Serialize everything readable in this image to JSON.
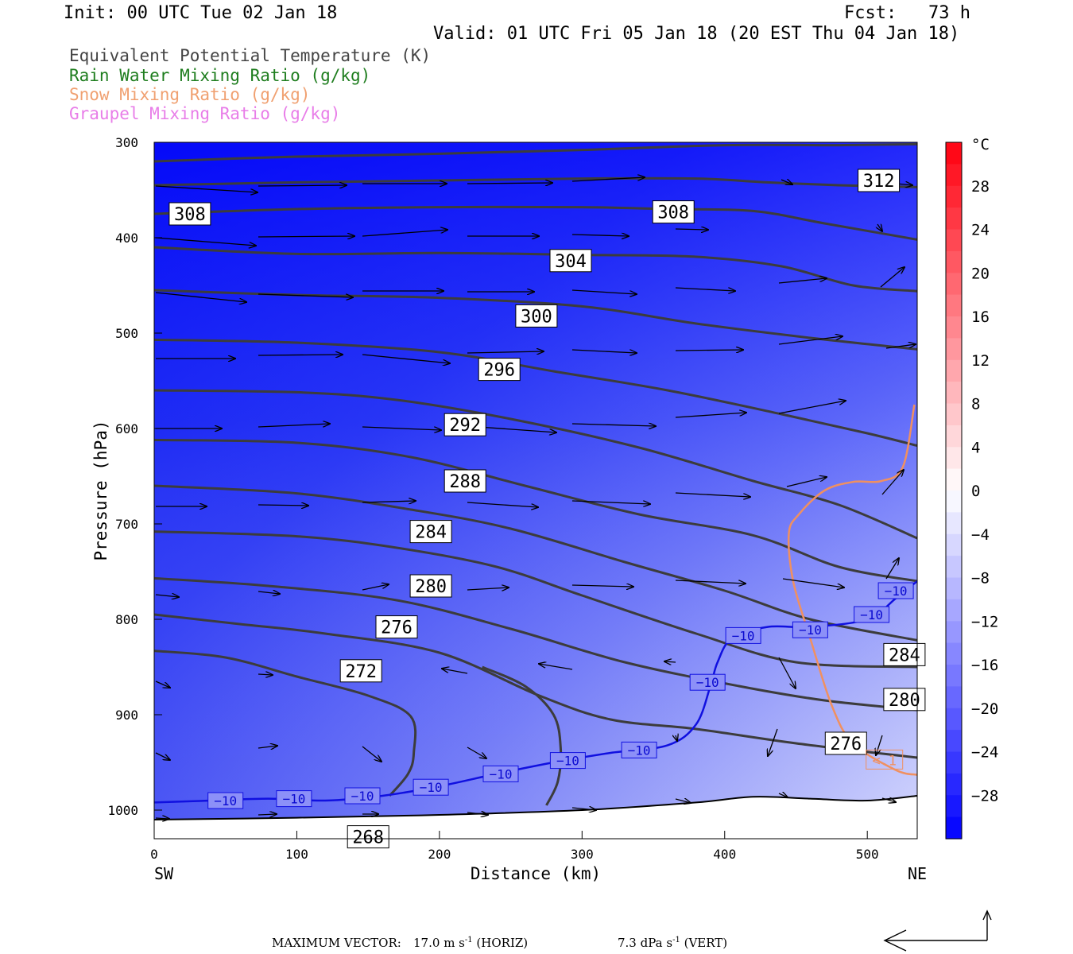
{
  "header": {
    "init": "Init: 00 UTC Tue 02 Jan 18",
    "fcst": "Fcst:   73 h",
    "valid": "Valid: 01 UTC Fri 05 Jan 18 (20 EST Thu 04 Jan 18)"
  },
  "legend": {
    "items": [
      {
        "label": "Equivalent Potential Temperature (K)",
        "color": "#444444"
      },
      {
        "label": "Rain Water Mixing Ratio (g/kg)",
        "color": "#1e7d1e"
      },
      {
        "label": "Snow Mixing Ratio (g/kg)",
        "color": "#f0a070"
      },
      {
        "label": "Graupel Mixing Ratio (g/kg)",
        "color": "#e87de8"
      }
    ]
  },
  "chart_data": {
    "type": "cross-section",
    "xlabel": "Distance (km)",
    "ylabel": "Pressure (hPa)",
    "xlim": [
      0,
      535
    ],
    "ylim": [
      1030,
      300
    ],
    "xticks": [
      0,
      100,
      200,
      300,
      400,
      500
    ],
    "yticks": [
      300,
      400,
      500,
      600,
      700,
      800,
      900,
      1000
    ],
    "x_end_labels": {
      "left": "SW",
      "right": "NE"
    },
    "colorbar": {
      "unit": "°C",
      "tick_labels": [
        "28",
        "24",
        "20",
        "16",
        "12",
        "8",
        "4",
        "0",
        "−4",
        "−8",
        "−12",
        "−16",
        "−20",
        "−24",
        "−28"
      ],
      "tick_values": [
        28,
        24,
        20,
        16,
        12,
        8,
        4,
        0,
        -4,
        -8,
        -12,
        -16,
        -20,
        -24,
        -28
      ],
      "range": [
        -32,
        32
      ]
    },
    "theta_e_contours": [
      {
        "label": "312",
        "points": [
          [
            0,
            320
          ],
          [
            100,
            315
          ],
          [
            200,
            312
          ],
          [
            300,
            308
          ],
          [
            400,
            303
          ],
          [
            480,
            303
          ],
          [
            535,
            302
          ]
        ]
      },
      {
        "label": "308",
        "points": [
          [
            0,
            345
          ],
          [
            100,
            342
          ],
          [
            200,
            340
          ],
          [
            300,
            338
          ],
          [
            380,
            338
          ],
          [
            430,
            342
          ],
          [
            480,
            345
          ],
          [
            535,
            347
          ]
        ]
      },
      {
        "label": "308",
        "points": [
          [
            0,
            375
          ],
          [
            100,
            370
          ],
          [
            200,
            368
          ],
          [
            300,
            368
          ],
          [
            360,
            370
          ],
          [
            420,
            372
          ],
          [
            470,
            385
          ],
          [
            535,
            402
          ]
        ]
      },
      {
        "label": "304",
        "points": [
          [
            0,
            410
          ],
          [
            100,
            417
          ],
          [
            200,
            416
          ],
          [
            300,
            418
          ],
          [
            380,
            420
          ],
          [
            440,
            430
          ],
          [
            490,
            450
          ],
          [
            535,
            456
          ]
        ]
      },
      {
        "label": "300",
        "points": [
          [
            0,
            455
          ],
          [
            100,
            460
          ],
          [
            200,
            463
          ],
          [
            300,
            472
          ],
          [
            380,
            490
          ],
          [
            460,
            505
          ],
          [
            535,
            517
          ]
        ]
      },
      {
        "label": "296",
        "points": [
          [
            0,
            507
          ],
          [
            100,
            510
          ],
          [
            200,
            520
          ],
          [
            280,
            540
          ],
          [
            360,
            560
          ],
          [
            440,
            585
          ],
          [
            500,
            605
          ],
          [
            535,
            618
          ]
        ]
      },
      {
        "label": "292",
        "points": [
          [
            0,
            560
          ],
          [
            100,
            562
          ],
          [
            170,
            570
          ],
          [
            250,
            590
          ],
          [
            340,
            620
          ],
          [
            420,
            655
          ],
          [
            480,
            680
          ],
          [
            535,
            715
          ]
        ]
      },
      {
        "label": "288",
        "points": [
          [
            0,
            612
          ],
          [
            100,
            615
          ],
          [
            180,
            630
          ],
          [
            260,
            660
          ],
          [
            340,
            690
          ],
          [
            420,
            712
          ],
          [
            480,
            745
          ],
          [
            535,
            760
          ]
        ]
      },
      {
        "label": "284",
        "points": [
          [
            0,
            660
          ],
          [
            100,
            668
          ],
          [
            180,
            685
          ],
          [
            250,
            705
          ],
          [
            330,
            740
          ],
          [
            400,
            770
          ],
          [
            460,
            800
          ],
          [
            535,
            822
          ]
        ]
      },
      {
        "label": "280",
        "points": [
          [
            0,
            708
          ],
          [
            100,
            713
          ],
          [
            170,
            725
          ],
          [
            240,
            745
          ],
          [
            300,
            775
          ],
          [
            380,
            815
          ],
          [
            450,
            845
          ],
          [
            535,
            850
          ]
        ]
      },
      {
        "label": "276",
        "points": [
          [
            0,
            757
          ],
          [
            80,
            765
          ],
          [
            170,
            780
          ],
          [
            250,
            810
          ],
          [
            330,
            845
          ],
          [
            410,
            870
          ],
          [
            470,
            885
          ],
          [
            535,
            895
          ]
        ]
      },
      {
        "label": "272",
        "points": [
          [
            0,
            795
          ],
          [
            60,
            805
          ],
          [
            120,
            815
          ],
          [
            200,
            835
          ],
          [
            270,
            880
          ],
          [
            320,
            905
          ],
          [
            380,
            915
          ],
          [
            450,
            930
          ],
          [
            535,
            945
          ]
        ]
      },
      {
        "label": "268",
        "points": [
          [
            0,
            833
          ],
          [
            50,
            840
          ],
          [
            100,
            860
          ],
          [
            150,
            880
          ],
          [
            180,
            902
          ],
          [
            182,
            940
          ],
          [
            178,
            962
          ],
          [
            165,
            985
          ]
        ]
      },
      {
        "label": "268",
        "points": [
          [
            230,
            850
          ],
          [
            260,
            870
          ],
          [
            280,
            900
          ],
          [
            285,
            935
          ],
          [
            283,
            970
          ],
          [
            275,
            995
          ]
        ]
      }
    ],
    "theta_e_labels": [
      {
        "text": "312",
        "x": 508,
        "y": 340
      },
      {
        "text": "308",
        "x": 25,
        "y": 375
      },
      {
        "text": "308",
        "x": 364,
        "y": 373
      },
      {
        "text": "304",
        "x": 292,
        "y": 424
      },
      {
        "text": "300",
        "x": 268,
        "y": 482
      },
      {
        "text": "296",
        "x": 242,
        "y": 538
      },
      {
        "text": "292",
        "x": 218,
        "y": 596
      },
      {
        "text": "288",
        "x": 218,
        "y": 655
      },
      {
        "text": "284",
        "x": 194,
        "y": 708
      },
      {
        "text": "280",
        "x": 194,
        "y": 765
      },
      {
        "text": "276",
        "x": 170,
        "y": 808
      },
      {
        "text": "272",
        "x": 145,
        "y": 854
      },
      {
        "text": "268",
        "x": 150,
        "y": 1028
      },
      {
        "text": "284",
        "x": 526,
        "y": 837
      },
      {
        "text": "280",
        "x": 526,
        "y": 884
      },
      {
        "text": "276",
        "x": 485,
        "y": 930
      }
    ],
    "isotherm_minus10": {
      "label": "−10",
      "points": [
        [
          0,
          992
        ],
        [
          40,
          990
        ],
        [
          80,
          988
        ],
        [
          120,
          990
        ],
        [
          160,
          985
        ],
        [
          200,
          975
        ],
        [
          240,
          962
        ],
        [
          280,
          950
        ],
        [
          320,
          940
        ],
        [
          360,
          932
        ],
        [
          380,
          910
        ],
        [
          390,
          870
        ],
        [
          395,
          845
        ],
        [
          405,
          820
        ],
        [
          430,
          808
        ],
        [
          460,
          808
        ],
        [
          500,
          800
        ],
        [
          520,
          778
        ],
        [
          535,
          760
        ]
      ],
      "labels": [
        [
          50,
          990
        ],
        [
          98,
          988
        ],
        [
          146,
          985
        ],
        [
          194,
          976
        ],
        [
          243,
          962
        ],
        [
          290,
          948
        ],
        [
          340,
          937
        ],
        [
          388,
          866
        ],
        [
          413,
          817
        ],
        [
          460,
          811
        ],
        [
          503,
          795
        ],
        [
          520,
          770
        ]
      ]
    },
    "snow_contour": {
      "label": "<.1",
      "points": [
        [
          533,
          575
        ],
        [
          525,
          640
        ],
        [
          510,
          655
        ],
        [
          490,
          656
        ],
        [
          470,
          665
        ],
        [
          452,
          690
        ],
        [
          445,
          710
        ],
        [
          448,
          760
        ],
        [
          460,
          820
        ],
        [
          475,
          890
        ],
        [
          490,
          930
        ],
        [
          520,
          958
        ],
        [
          535,
          963
        ]
      ],
      "labels": [
        [
          512,
          947
        ]
      ]
    },
    "terrain": {
      "points": [
        [
          0,
          1010
        ],
        [
          100,
          1008
        ],
        [
          200,
          1005
        ],
        [
          300,
          1000
        ],
        [
          380,
          992
        ],
        [
          420,
          986
        ],
        [
          460,
          988
        ],
        [
          500,
          990
        ],
        [
          535,
          985
        ]
      ]
    },
    "max_vector": {
      "label": "MAXIMUM VECTOR:",
      "horiz_value": "17.0",
      "horiz_unit": "m s",
      "vert_value": "7.3",
      "vert_unit": "dPa s",
      "exponent": "-1",
      "horiz_tag": "(HORIZ)",
      "vert_tag": "(VERT)"
    }
  }
}
